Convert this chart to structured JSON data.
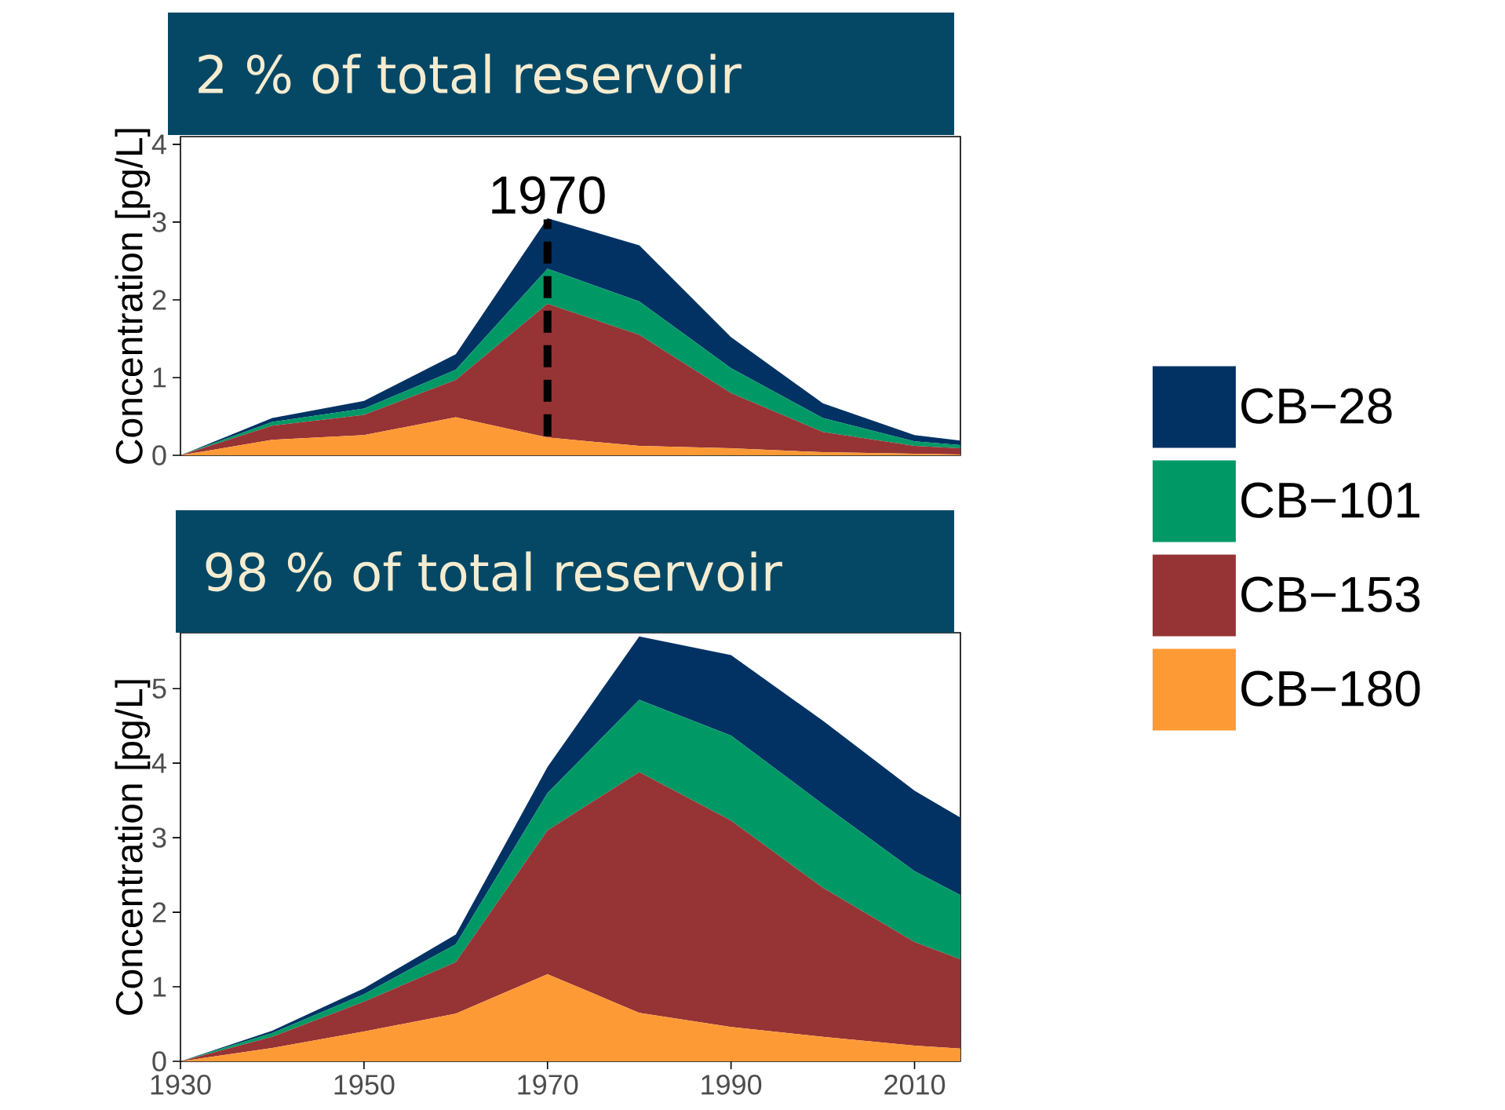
{
  "chart_data": [
    {
      "type": "area",
      "stacked": true,
      "title": "2 % of total reservoir",
      "ylabel": "Concentration [pg/L]",
      "x": [
        1930,
        1940,
        1950,
        1960,
        1970,
        1980,
        1990,
        2000,
        2010,
        2015
      ],
      "xlim": [
        1930,
        2015
      ],
      "ylim": [
        0,
        4.1
      ],
      "yticks": [
        0,
        1,
        2,
        3,
        4
      ],
      "tick_labels": "y",
      "ref_lines": [
        {
          "axis": "x",
          "value": 1970,
          "label": "1970",
          "color": "#000000",
          "line_style": "dashed"
        }
      ],
      "series": [
        {
          "color": "#fd9a35",
          "values": [
            0,
            0.2,
            0.26,
            0.49,
            0.23,
            0.12,
            0.09,
            0.04,
            0.02,
            0.01
          ]
        },
        {
          "color": "#963334",
          "values": [
            0,
            0.18,
            0.26,
            0.48,
            1.72,
            1.43,
            0.71,
            0.26,
            0.1,
            0.08
          ]
        },
        {
          "color": "#009966",
          "values": [
            0,
            0.05,
            0.08,
            0.13,
            0.45,
            0.43,
            0.32,
            0.18,
            0.06,
            0.04
          ]
        },
        {
          "color": "#023264",
          "values": [
            0,
            0.05,
            0.1,
            0.2,
            0.65,
            0.72,
            0.4,
            0.19,
            0.08,
            0.06
          ]
        }
      ]
    },
    {
      "type": "area",
      "stacked": true,
      "title": "98 % of total reservoir",
      "ylabel": "Concentration [pg/L]",
      "x": [
        1930,
        1940,
        1950,
        1960,
        1970,
        1980,
        1990,
        2000,
        2010,
        2015
      ],
      "xlim": [
        1930,
        2015
      ],
      "xticks": [
        1930,
        1950,
        1970,
        1990,
        2010
      ],
      "ylim": [
        0,
        5.75
      ],
      "yticks": [
        0,
        1,
        2,
        3,
        4,
        5
      ],
      "legend": "right",
      "series": [
        {
          "name": "CB−180",
          "color": "#fd9a35",
          "values": [
            0,
            0.18,
            0.4,
            0.64,
            1.17,
            0.65,
            0.46,
            0.33,
            0.21,
            0.17
          ]
        },
        {
          "name": "CB−153",
          "color": "#963334",
          "values": [
            0,
            0.15,
            0.4,
            0.69,
            1.93,
            3.23,
            2.77,
            2.0,
            1.39,
            1.2
          ]
        },
        {
          "name": "CB−101",
          "color": "#009966",
          "values": [
            0,
            0.05,
            0.1,
            0.24,
            0.5,
            0.97,
            1.14,
            1.12,
            0.95,
            0.86
          ]
        },
        {
          "name": "CB−28",
          "color": "#023264",
          "values": [
            0,
            0.03,
            0.08,
            0.13,
            0.35,
            0.85,
            1.08,
            1.12,
            1.08,
            1.04
          ]
        }
      ]
    }
  ]
}
